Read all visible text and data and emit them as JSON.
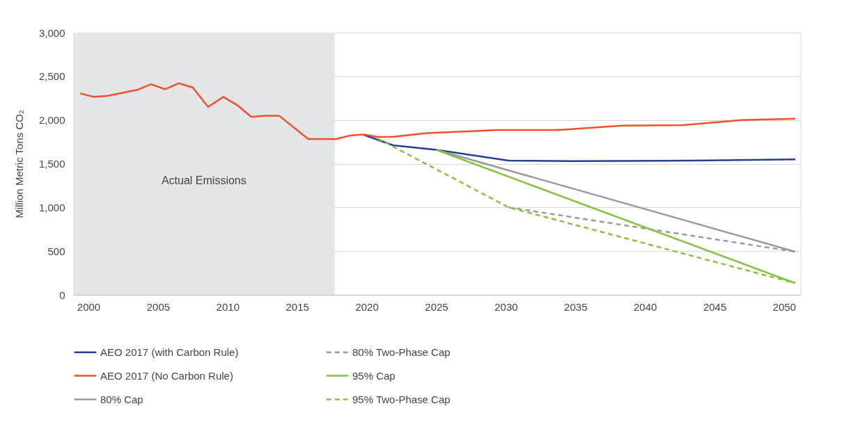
{
  "chart_data": {
    "type": "line",
    "ylabel": "Million Metric Tons CO₂",
    "xlim": [
      1998.9,
      2051.2
    ],
    "xticks": [
      2000,
      2005,
      2010,
      2015,
      2020,
      2025,
      2030,
      2035,
      2040,
      2045,
      2050
    ],
    "ylim": [
      0,
      3000
    ],
    "yticks": [
      0,
      500,
      {
        "value": 1000,
        "label": "1,000"
      },
      {
        "value": 1500,
        "label": "1,500"
      },
      {
        "value": 2000,
        "label": "2,000"
      },
      {
        "value": 2500,
        "label": "2,500"
      },
      {
        "value": 3000,
        "label": "3,000"
      }
    ],
    "grid": "y",
    "legend": "bottom",
    "marker": "none",
    "bands": [
      {
        "axis": "x",
        "from": 1998.9,
        "to": 2017.7,
        "label": "Actual Emissions",
        "color": "#e4e5e9"
      }
    ],
    "series": [
      {
        "name": "AEO 2017 (with Carbon Rule)",
        "color": "#233f96",
        "line_style": "solid",
        "x": [
          2019.8,
          2021.9,
          2025.0,
          2030.2,
          2034.8,
          2041.4,
          2050.8
        ],
        "values": [
          1830,
          1711,
          1659,
          1536,
          1530,
          1533,
          1550
        ]
      },
      {
        "name": "AEO 2017 (No Carbon Rule)",
        "color": "#ef5027",
        "line_style": "solid",
        "x": [
          1999.4,
          2000.4,
          2001.4,
          2003.5,
          2004.5,
          2005.5,
          2006.5,
          2007.5,
          2008.6,
          2009.7,
          2010.7,
          2011.7,
          2012.7,
          2013.7,
          2015.8,
          2017.8,
          2018.8,
          2019.8,
          2020.8,
          2021.9,
          2024.3,
          2029.4,
          2033.8,
          2038.3,
          2042.7,
          2046.9,
          2050.8
        ],
        "values": [
          2305,
          2265,
          2278,
          2345,
          2410,
          2352,
          2421,
          2371,
          2150,
          2265,
          2170,
          2037,
          2050,
          2050,
          1782,
          1782,
          1823,
          1834,
          1806,
          1809,
          1851,
          1886,
          1886,
          1935,
          1942,
          1999,
          2016
        ]
      },
      {
        "name": "80% Cap",
        "color": "#999a9c",
        "line_style": "solid",
        "x": [
          2025.0,
          2050.8
        ],
        "values": [
          1659,
          493
        ]
      },
      {
        "name": "80% Two-Phase Cap",
        "color": "#999a9c",
        "line_style": "dashed",
        "x": [
          2030.2,
          2050.8
        ],
        "values": [
          1001,
          493
        ]
      },
      {
        "name": "95% Cap",
        "color": "#86c23f",
        "line_style": "solid",
        "x": [
          2025.0,
          2050.8
        ],
        "values": [
          1659,
          133
        ]
      },
      {
        "name": "95% Two-Phase Cap",
        "color": "#86c23f",
        "line_style": "dashed",
        "x": [
          2020.8,
          2030.2,
          2050.8
        ],
        "values": [
          1788,
          1001,
          133
        ]
      }
    ]
  }
}
